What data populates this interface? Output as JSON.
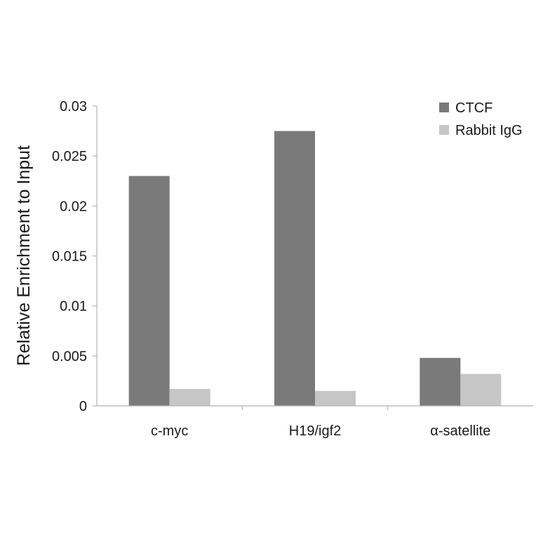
{
  "chart_data": {
    "type": "bar",
    "title": "",
    "xlabel": "",
    "ylabel": "Relative Enrichment to Input",
    "categories": [
      "c-myc",
      "H19/igf2",
      "α-satellite"
    ],
    "series": [
      {
        "name": "CTCF",
        "values": [
          0.023,
          0.0275,
          0.0048
        ],
        "color": "#7a7a7a"
      },
      {
        "name": "Rabbit IgG",
        "values": [
          0.0017,
          0.0015,
          0.0032
        ],
        "color": "#c6c6c6"
      }
    ],
    "ylim": [
      0,
      0.03
    ],
    "yticks": [
      "0",
      "0.005",
      "0.01",
      "0.015",
      "0.02",
      "0.025",
      "0.03"
    ],
    "ytick_values": [
      0,
      0.005,
      0.01,
      0.015,
      0.02,
      0.025,
      0.03
    ],
    "grid": false,
    "legend_position": "top-right"
  }
}
